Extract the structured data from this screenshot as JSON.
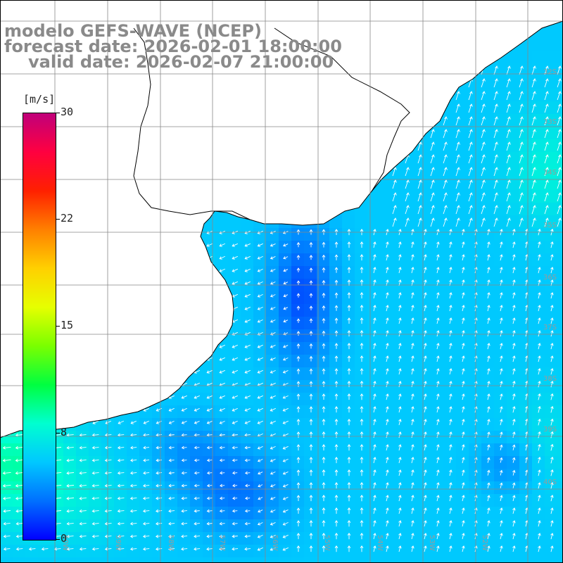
{
  "title": {
    "line1": "modelo GEFS-WAVE (NCEP)",
    "line2": "forecast date: 2026-02-01 18:00:00",
    "line3": "valid date: 2026-02-07 21:00:00"
  },
  "colorbar": {
    "unit": "[m/s]",
    "ticks": [
      "30",
      "22",
      "15",
      "8",
      "0"
    ],
    "range": [
      0,
      30
    ],
    "colors": [
      "#0000ff",
      "#0070ff",
      "#00c8ff",
      "#00ffd0",
      "#00ff40",
      "#7aff00",
      "#e6ff00",
      "#ffd000",
      "#ff8000",
      "#ff2000",
      "#ff0040",
      "#c0007a"
    ]
  },
  "map": {
    "lat_labels": [
      "32S",
      "33S",
      "34S",
      "35S",
      "36S",
      "37S",
      "38S",
      "39S",
      "40S"
    ],
    "lon_labels": [
      "60W",
      "59W",
      "58W",
      "57W",
      "56W",
      "55W",
      "54W",
      "53W",
      "52W"
    ],
    "land_color": "#ffffff",
    "arrow_color": "#ffffff",
    "grid_color": "#888888"
  }
}
